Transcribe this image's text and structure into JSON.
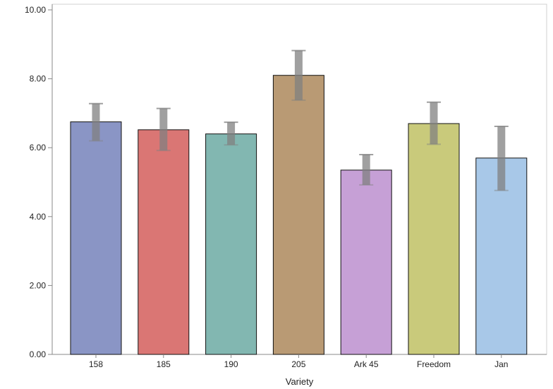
{
  "chart_data": {
    "type": "bar",
    "title": "",
    "xlabel": "Variety",
    "ylabel": "",
    "ylim": [
      0,
      10
    ],
    "yticks": [
      0,
      2,
      4,
      6,
      8,
      10
    ],
    "ytick_labels": [
      "0.00",
      "2.00",
      "4.00",
      "6.00",
      "8.00",
      "10.00"
    ],
    "grid": false,
    "legend": "none",
    "categories": [
      "158",
      "185",
      "190",
      "205",
      "Ark 45",
      "Freedom",
      "Jan"
    ],
    "values": [
      6.75,
      6.52,
      6.4,
      8.1,
      5.35,
      6.7,
      5.7
    ],
    "error_low": [
      6.2,
      5.92,
      6.08,
      7.38,
      4.92,
      6.1,
      4.76
    ],
    "error_high": [
      7.28,
      7.14,
      6.74,
      8.82,
      5.8,
      7.32,
      6.62
    ],
    "colors": [
      "#8a95c5",
      "#da7674",
      "#82b7b1",
      "#b99a74",
      "#c6a0d6",
      "#c9ca7b",
      "#a8c8e8"
    ],
    "error_bar_color": "#808080"
  }
}
